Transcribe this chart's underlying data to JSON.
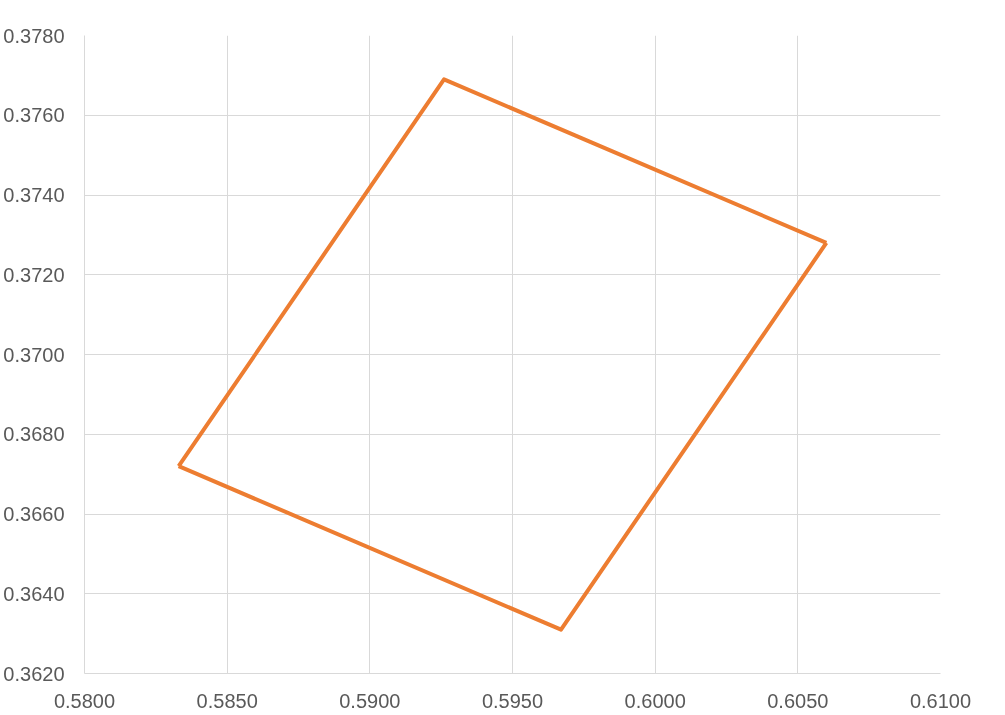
{
  "chart_data": {
    "type": "line",
    "series": [
      {
        "color": "#ed7d31",
        "x": [
          0.5833,
          0.5926,
          0.606
        ],
        "values": [
          0.3672,
          0.3769,
          0.3728
        ]
      },
      {
        "color": "#ed7d31",
        "x": [
          0.5833,
          0.5967,
          0.606
        ],
        "values": [
          0.3672,
          0.3631,
          0.3728
        ]
      }
    ],
    "xlim": [
      0.58,
      0.61
    ],
    "ylim": [
      0.362,
      0.378
    ],
    "xticks": [
      {
        "value": 0.58,
        "label": "0.5800"
      },
      {
        "value": 0.585,
        "label": "0.5850"
      },
      {
        "value": 0.59,
        "label": "0.5900"
      },
      {
        "value": 0.595,
        "label": "0.5950"
      },
      {
        "value": 0.6,
        "label": "0.6000"
      },
      {
        "value": 0.605,
        "label": "0.6050"
      },
      {
        "value": 0.61,
        "label": "0.6100"
      }
    ],
    "yticks": [
      {
        "value": 0.362,
        "label": "0.3620"
      },
      {
        "value": 0.364,
        "label": "0.3640"
      },
      {
        "value": 0.366,
        "label": "0.3660"
      },
      {
        "value": 0.368,
        "label": "0.3680"
      },
      {
        "value": 0.37,
        "label": "0.3700"
      },
      {
        "value": 0.372,
        "label": "0.3720"
      },
      {
        "value": 0.374,
        "label": "0.3740"
      },
      {
        "value": 0.376,
        "label": "0.3760"
      },
      {
        "value": 0.378,
        "label": "0.3780"
      }
    ],
    "grid": true,
    "marker": "none",
    "line_style": "solid"
  }
}
